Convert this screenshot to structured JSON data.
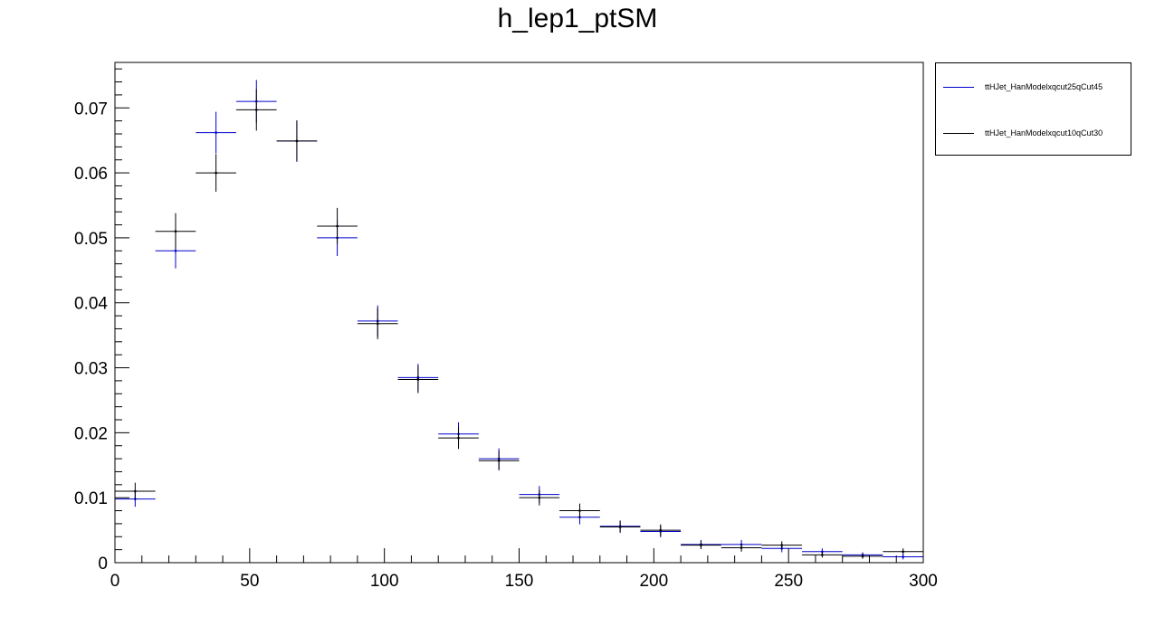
{
  "chart_data": {
    "type": "scatter",
    "title": "h_lep1_ptSM",
    "xlabel": "",
    "ylabel": "",
    "xlim": [
      0,
      300
    ],
    "ylim": [
      0,
      0.077
    ],
    "x_ticks": [
      "0",
      "50",
      "100",
      "150",
      "200",
      "250",
      "300"
    ],
    "y_ticks": [
      "0",
      "0.01",
      "0.02",
      "0.03",
      "0.04",
      "0.05",
      "0.06",
      "0.07"
    ],
    "bin_width": 15,
    "x": [
      7.5,
      22.5,
      37.5,
      52.5,
      67.5,
      82.5,
      97.5,
      112.5,
      127.5,
      142.5,
      157.5,
      172.5,
      187.5,
      202.5,
      217.5,
      232.5,
      247.5,
      262.5,
      277.5,
      292.5
    ],
    "legend_position": "top-right, outside plot",
    "series": [
      {
        "name": "ttHJet_HanModelxqcut25qCut45",
        "color": "#0000cc",
        "values": [
          0.0098,
          0.048,
          0.0662,
          0.071,
          0.0649,
          0.05,
          0.0372,
          0.0285,
          0.0198,
          0.016,
          0.0105,
          0.007,
          0.0056,
          0.0048,
          0.0028,
          0.0028,
          0.0022,
          0.0017,
          0.0012,
          0.0009
        ],
        "errors": [
          0.0012,
          0.0027,
          0.0032,
          0.0033,
          0.0032,
          0.0028,
          0.0024,
          0.0021,
          0.0018,
          0.0016,
          0.0013,
          0.0011,
          0.0009,
          0.0009,
          0.0007,
          0.0007,
          0.0006,
          0.0005,
          0.0004,
          0.0004
        ]
      },
      {
        "name": "ttHJet_HanModelxqcut10qCut30",
        "color": "#000000",
        "values": [
          0.011,
          0.051,
          0.06,
          0.0697,
          0.0649,
          0.0518,
          0.0368,
          0.0282,
          0.0192,
          0.0157,
          0.01,
          0.008,
          0.0055,
          0.005,
          0.0027,
          0.0023,
          0.0027,
          0.0012,
          0.001,
          0.0017
        ]
      }
    ],
    "black_errors": [
      0.0013,
      0.0028,
      0.0029,
      0.0032,
      0.0031,
      0.0028,
      0.0024,
      0.0021,
      0.0017,
      0.0015,
      0.0012,
      0.0011,
      0.0009,
      0.0009,
      0.0006,
      0.0006,
      0.0006,
      0.0004,
      0.0004,
      0.0005
    ]
  }
}
